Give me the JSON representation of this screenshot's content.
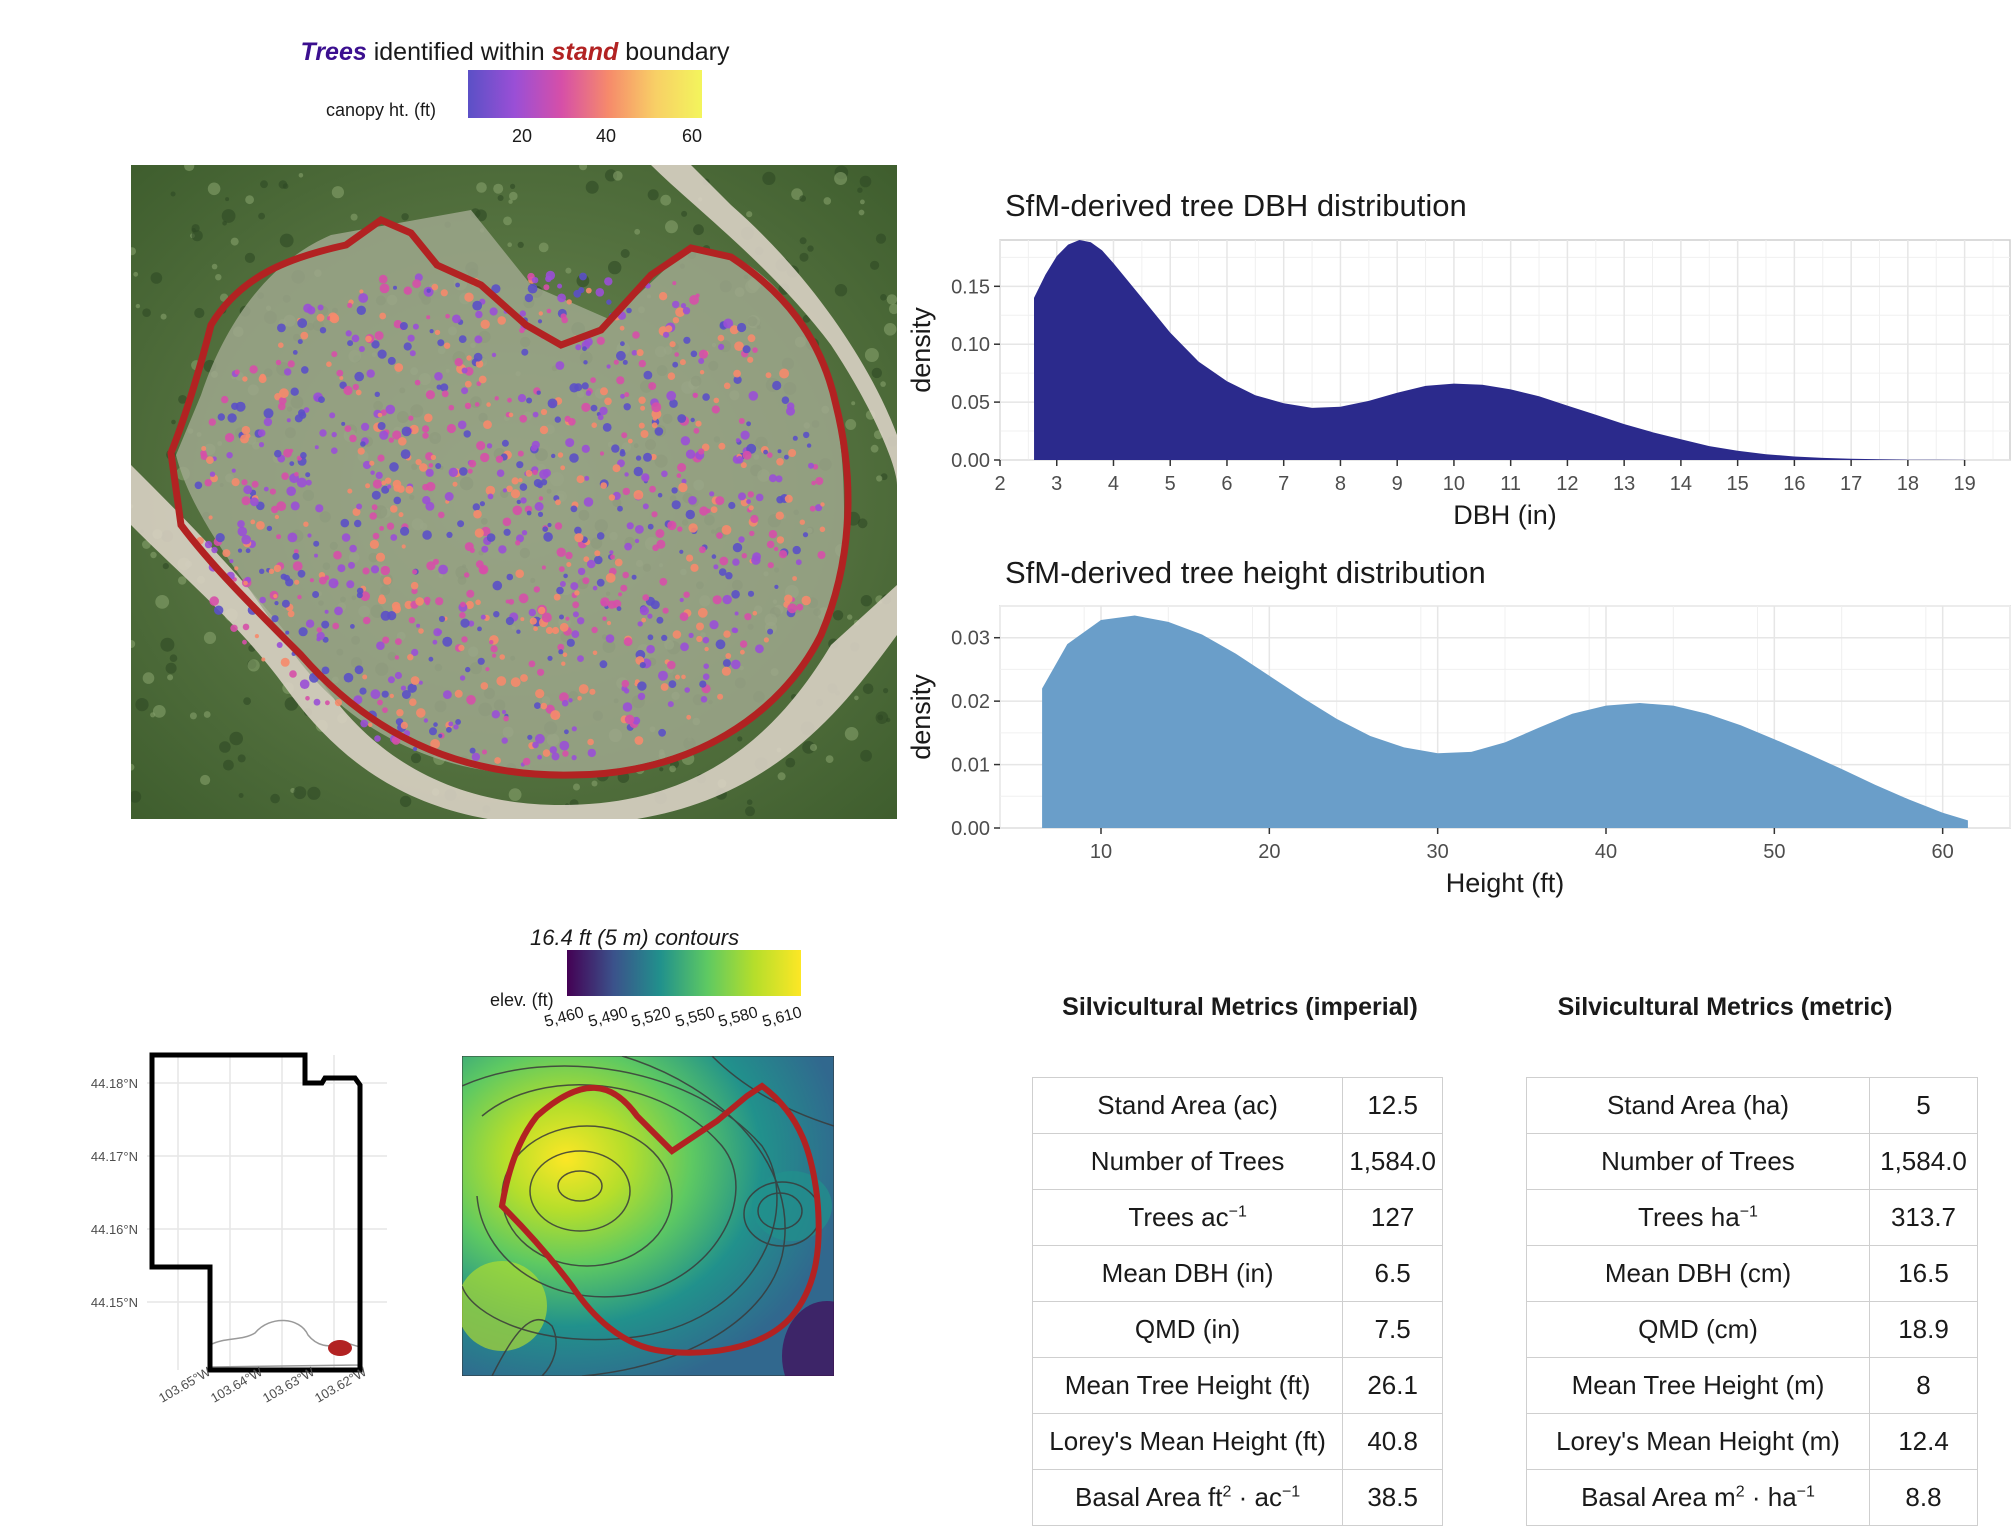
{
  "map_title": {
    "trees": "Trees",
    "middle": " identified within ",
    "stand": "stand",
    "end": " boundary"
  },
  "canopy_legend": {
    "label": "canopy ht. (ft)",
    "ticks": [
      "20",
      "40",
      "60"
    ],
    "ramp": [
      "#5b50c6",
      "#9a4fd6",
      "#d64fa8",
      "#f68a6b",
      "#f8cf66",
      "#f3f55c"
    ]
  },
  "dbh_chart": {
    "title": "SfM-derived tree DBH distribution",
    "xlabel": "DBH (in)",
    "ylabel": "density",
    "color": "#2b2a8c"
  },
  "height_chart": {
    "title": "SfM-derived tree height distribution",
    "xlabel": "Height (ft)",
    "ylabel": "density",
    "color": "#6a9ec9"
  },
  "chart_data": [
    {
      "type": "area",
      "title": "SfM-derived tree DBH distribution",
      "xlabel": "DBH (in)",
      "ylabel": "density",
      "xlim": [
        2,
        19.8
      ],
      "ylim": [
        0,
        0.19
      ],
      "x_ticks": [
        2,
        3,
        4,
        5,
        6,
        7,
        8,
        9,
        10,
        11,
        12,
        13,
        14,
        15,
        16,
        17,
        18,
        19
      ],
      "y_ticks": [
        0.0,
        0.05,
        0.1,
        0.15
      ],
      "y_tick_labels": [
        "0.00",
        "0.05",
        "0.10",
        "0.15"
      ],
      "x": [
        2.6,
        2.8,
        3.0,
        3.2,
        3.4,
        3.6,
        3.8,
        4.0,
        4.5,
        5.0,
        5.5,
        6.0,
        6.5,
        7.0,
        7.5,
        8.0,
        8.5,
        9.0,
        9.5,
        10.0,
        10.5,
        11.0,
        11.5,
        12.0,
        12.5,
        13.0,
        13.5,
        14.0,
        14.5,
        15.0,
        15.5,
        16.0,
        16.5,
        17.0,
        17.5,
        18.0,
        18.5,
        19.0
      ],
      "y": [
        0.14,
        0.16,
        0.176,
        0.186,
        0.19,
        0.188,
        0.181,
        0.17,
        0.14,
        0.11,
        0.085,
        0.068,
        0.056,
        0.049,
        0.045,
        0.046,
        0.051,
        0.058,
        0.064,
        0.066,
        0.065,
        0.061,
        0.055,
        0.047,
        0.039,
        0.031,
        0.024,
        0.018,
        0.012,
        0.008,
        0.005,
        0.003,
        0.0018,
        0.001,
        0.0006,
        0.0003,
        0.0002,
        0.0001
      ]
    },
    {
      "type": "area",
      "title": "SfM-derived tree height distribution",
      "xlabel": "Height (ft)",
      "ylabel": "density",
      "xlim": [
        4,
        64
      ],
      "ylim": [
        0,
        0.035
      ],
      "x_ticks": [
        10,
        20,
        30,
        40,
        50,
        60
      ],
      "y_ticks": [
        0.0,
        0.01,
        0.02,
        0.03
      ],
      "y_tick_labels": [
        "0.00",
        "0.01",
        "0.02",
        "0.03"
      ],
      "x": [
        6.5,
        8,
        10,
        12,
        14,
        16,
        18,
        20,
        22,
        24,
        26,
        28,
        30,
        32,
        34,
        36,
        38,
        40,
        42,
        44,
        46,
        48,
        50,
        52,
        54,
        56,
        58,
        60,
        61.5
      ],
      "y": [
        0.022,
        0.029,
        0.0328,
        0.0335,
        0.0325,
        0.0305,
        0.0275,
        0.024,
        0.0205,
        0.0172,
        0.0145,
        0.0127,
        0.0118,
        0.012,
        0.0135,
        0.0158,
        0.018,
        0.0193,
        0.0197,
        0.0193,
        0.018,
        0.0162,
        0.014,
        0.0117,
        0.0093,
        0.0068,
        0.0045,
        0.0024,
        0.0012
      ]
    }
  ],
  "locator_map": {
    "lat_ticks": [
      "44.18°N",
      "44.17°N",
      "44.16°N",
      "44.15°N"
    ],
    "lon_ticks": [
      "103.65°W",
      "103.64°W",
      "103.63°W",
      "103.62°W"
    ]
  },
  "contour_map": {
    "title": "16.4 ft (5 m) contours",
    "legend_label": "elev. (ft)",
    "ticks": [
      "5,460",
      "5,490",
      "5,520",
      "5,550",
      "5,580",
      "5,610"
    ],
    "ramp": [
      "#440154",
      "#3b528b",
      "#21918c",
      "#5ec962",
      "#b5de2b",
      "#fde725"
    ]
  },
  "imperial_table": {
    "title": "Silvicultural Metrics (imperial)",
    "rows": [
      {
        "label": "Stand Area (ac)",
        "value": "12.5"
      },
      {
        "label": "Number of Trees",
        "value": "1,584.0"
      },
      {
        "label": "Trees ac",
        "sup": "−1",
        "value": "127"
      },
      {
        "label": "Mean DBH (in)",
        "value": "6.5"
      },
      {
        "label": "QMD (in)",
        "value": "7.5"
      },
      {
        "label": "Mean Tree Height (ft)",
        "value": "26.1"
      },
      {
        "label": "Lorey's Mean Height (ft)",
        "value": "40.8"
      },
      {
        "label": "Basal Area ft",
        "sup": "2",
        "mid": " · ac",
        "sup2": "−1",
        "value": "38.5"
      }
    ]
  },
  "metric_table": {
    "title": "Silvicultural Metrics (metric)",
    "rows": [
      {
        "label": "Stand Area (ha)",
        "value": "5"
      },
      {
        "label": "Number of Trees",
        "value": "1,584.0"
      },
      {
        "label": "Trees ha",
        "sup": "−1",
        "value": "313.7"
      },
      {
        "label": "Mean DBH (cm)",
        "value": "16.5"
      },
      {
        "label": "QMD (cm)",
        "value": "18.9"
      },
      {
        "label": "Mean Tree Height (m)",
        "value": "8"
      },
      {
        "label": "Lorey's Mean Height (m)",
        "value": "12.4"
      },
      {
        "label": "Basal Area m",
        "sup": "2",
        "mid": " · ha",
        "sup2": "−1",
        "value": "8.8"
      }
    ]
  },
  "colors": {
    "boundary": "#b22222",
    "grid": "#e6e6e6",
    "panel_border": "#cfcfcf"
  }
}
